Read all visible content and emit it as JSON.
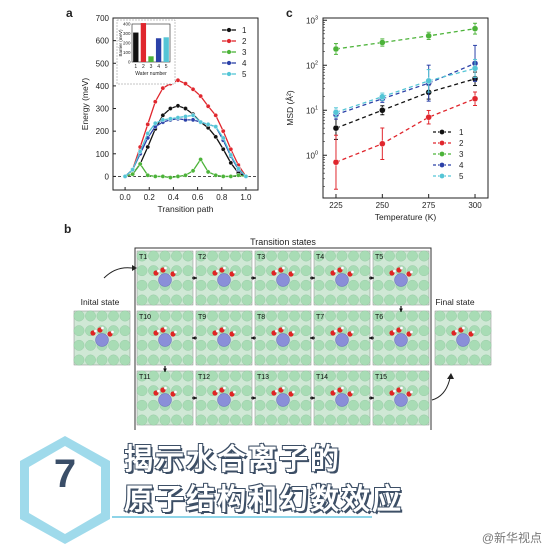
{
  "panels": {
    "a": "a",
    "b": "b",
    "c": "c"
  },
  "chart_data": [
    {
      "id": "a",
      "type": "line",
      "title": "",
      "xlabel": "Transition path",
      "ylabel": "Energy (meV)",
      "xlim": [
        -0.1,
        1.1
      ],
      "ylim": [
        -60,
        700
      ],
      "xticks": [
        "0.0",
        "0.2",
        "0.4",
        "0.6",
        "0.8",
        "1.0"
      ],
      "yticks": [
        "0",
        "100",
        "200",
        "300",
        "400",
        "500",
        "600",
        "700"
      ],
      "legend_position": "top-right",
      "baseline": 0,
      "x": [
        0.0,
        0.0625,
        0.125,
        0.1875,
        0.25,
        0.3125,
        0.375,
        0.4375,
        0.5,
        0.5625,
        0.625,
        0.6875,
        0.75,
        0.8125,
        0.875,
        0.9375,
        1.0
      ],
      "series": [
        {
          "name": "1",
          "color": "#111111",
          "values": [
            0,
            10,
            55,
            130,
            210,
            270,
            300,
            312,
            300,
            275,
            240,
            215,
            175,
            120,
            60,
            15,
            0
          ]
        },
        {
          "name": "2",
          "color": "#e0262d",
          "values": [
            0,
            30,
            130,
            230,
            330,
            390,
            410,
            425,
            410,
            385,
            355,
            310,
            270,
            200,
            120,
            50,
            0
          ]
        },
        {
          "name": "3",
          "color": "#4cb339",
          "values": [
            0,
            10,
            55,
            5,
            0,
            0,
            -5,
            0,
            5,
            25,
            75,
            20,
            5,
            0,
            0,
            5,
            0
          ]
        },
        {
          "name": "4",
          "color": "#2b41a8",
          "values": [
            0,
            30,
            100,
            170,
            220,
            240,
            250,
            255,
            250,
            250,
            240,
            230,
            220,
            160,
            90,
            30,
            0
          ]
        },
        {
          "name": "5",
          "color": "#54c5d6",
          "values": [
            0,
            30,
            110,
            190,
            235,
            250,
            255,
            260,
            265,
            270,
            240,
            230,
            220,
            170,
            95,
            35,
            0
          ]
        }
      ],
      "inset": {
        "type": "bar",
        "xlabel": "Water number",
        "ylabel": "Barrier (meV)",
        "categories": [
          "1",
          "2",
          "3",
          "4",
          "5"
        ],
        "values": [
          310,
          410,
          60,
          250,
          260
        ],
        "ylim": [
          0,
          400
        ],
        "yticks": [
          "0",
          "100",
          "200",
          "300",
          "400"
        ],
        "colors": [
          "#111111",
          "#e0262d",
          "#4cb339",
          "#2b41a8",
          "#54c5d6"
        ]
      }
    },
    {
      "id": "c",
      "type": "scatter",
      "title": "",
      "xlabel": "Temperature (K)",
      "ylabel": "MSD (Å²)",
      "ylabel_superscript": "2",
      "xlim": [
        218,
        307
      ],
      "ylim_log10": [
        -0.95,
        3.05
      ],
      "log_scale_y": true,
      "x": [
        225,
        250,
        275,
        300
      ],
      "xticks": [
        "225",
        "250",
        "275",
        "300"
      ],
      "yticks": [
        {
          "base": "10",
          "exp": "0",
          "log": 0
        },
        {
          "base": "10",
          "exp": "1",
          "log": 1
        },
        {
          "base": "10",
          "exp": "2",
          "log": 2
        },
        {
          "base": "10",
          "exp": "3",
          "log": 3
        }
      ],
      "legend_position": "bottom-right",
      "series": [
        {
          "name": "1",
          "color": "#111111",
          "values": [
            4,
            10,
            25,
            50
          ],
          "err_log": [
            0.25,
            0.1,
            0.15,
            0.15
          ]
        },
        {
          "name": "2",
          "color": "#e0262d",
          "values": [
            0.7,
            1.8,
            7,
            18
          ],
          "err_log": [
            0.6,
            0.35,
            0.15,
            0.15
          ]
        },
        {
          "name": "3",
          "color": "#4cb339",
          "values": [
            230,
            320,
            450,
            650
          ],
          "err_log": [
            0.12,
            0.08,
            0.08,
            0.12
          ]
        },
        {
          "name": "4",
          "color": "#2b41a8",
          "values": [
            8,
            18,
            40,
            110
          ],
          "err_log": [
            0.1,
            0.08,
            0.4,
            0.4
          ]
        },
        {
          "name": "5",
          "color": "#54c5d6",
          "values": [
            9,
            20,
            45,
            85
          ],
          "err_log": [
            0.1,
            0.08,
            0.25,
            0.2
          ]
        }
      ]
    }
  ],
  "diagram_b": {
    "header": "Transition states",
    "initial": "Inital state",
    "final": "Final state",
    "row1": [
      "T1",
      "T2",
      "T3",
      "T4",
      "T5"
    ],
    "row2": [
      "T10",
      "T9",
      "T8",
      "T7",
      "T6"
    ],
    "row3": [
      "T11",
      "T12",
      "T13",
      "T14",
      "T15"
    ]
  },
  "banner": {
    "number": "7",
    "line1": "揭示水合离子的",
    "line2": "原子结构和幻数效应",
    "watermark": "@新华视点"
  }
}
